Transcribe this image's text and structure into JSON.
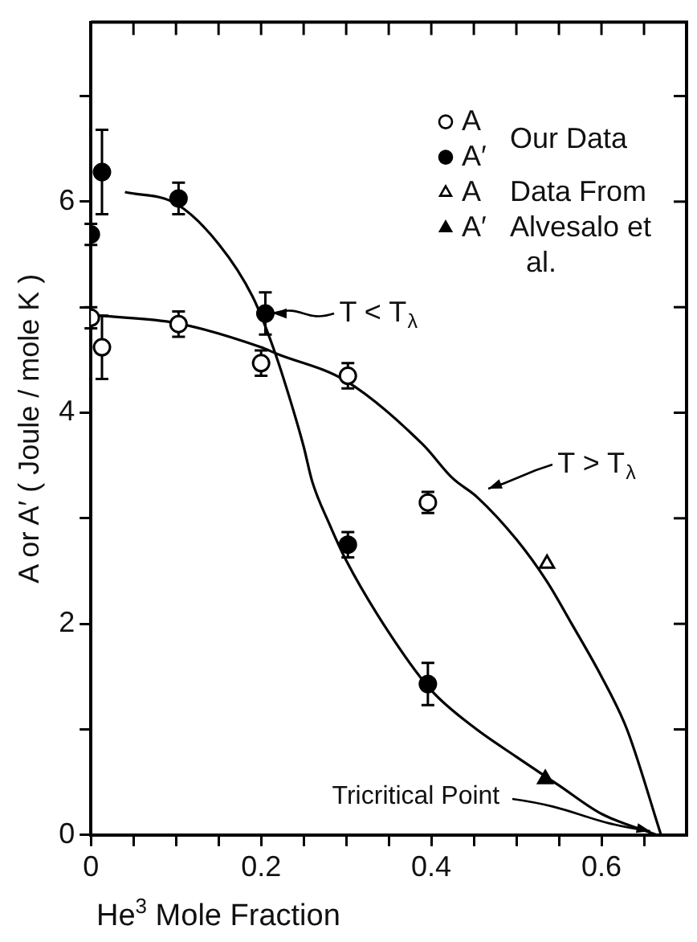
{
  "chart_data": {
    "type": "scatter",
    "xlabel": "He$^{3}$ Mole Fraction",
    "ylabel": "A or A′ ( Joule / mole K )",
    "xlim": [
      0,
      0.7
    ],
    "xticks": [
      0,
      {
        "value": 0.05,
        "label": null
      },
      {
        "value": 0.1,
        "label": null
      },
      {
        "value": 0.15,
        "label": null
      },
      {
        "value": 0.2,
        "label": "0.2"
      },
      {
        "value": 0.25,
        "label": null
      },
      {
        "value": 0.3,
        "label": null
      },
      {
        "value": 0.35,
        "label": null
      },
      {
        "value": 0.4,
        "label": "0.4"
      },
      {
        "value": 0.45,
        "label": null
      },
      {
        "value": 0.5,
        "label": null
      },
      {
        "value": 0.55,
        "label": null
      },
      {
        "value": 0.6,
        "label": "0.6"
      },
      {
        "value": 0.65,
        "label": null
      }
    ],
    "ylim": [
      0,
      7.7
    ],
    "yticks": [
      0,
      {
        "value": 1,
        "label": null
      },
      2,
      {
        "value": 3,
        "label": null
      },
      4,
      {
        "value": 5,
        "label": null
      },
      6,
      {
        "value": 7,
        "label": null
      }
    ],
    "grid": false,
    "legend": "top right",
    "series": [
      {
        "name": "A",
        "type": "scatter",
        "marker": "circle",
        "color": "#ffffff",
        "x": [
          0.0,
          0.013,
          0.103,
          0.2,
          0.302,
          0.396
        ],
        "values": [
          4.9,
          4.62,
          4.84,
          4.47,
          4.35,
          3.15
        ],
        "errors": [
          0.1,
          0.3,
          0.12,
          0.12,
          0.12,
          0.1
        ]
      },
      {
        "name": "A′",
        "type": "scatter",
        "marker": "circle",
        "color": "#000000",
        "x": [
          0.0,
          0.013,
          0.103,
          0.205,
          0.302,
          0.396
        ],
        "values": [
          5.69,
          6.28,
          6.03,
          4.94,
          2.75,
          1.43
        ],
        "errors": [
          0.1,
          0.4,
          0.15,
          0.2,
          0.12,
          0.2
        ]
      },
      {
        "name": "A",
        "type": "scatter",
        "marker": "triangle",
        "color": "#ffffff",
        "x": [
          0.536
        ],
        "values": [
          2.57
        ]
      },
      {
        "name": "A′",
        "type": "scatter",
        "marker": "triangle",
        "color": "#000000",
        "x": [
          0.534
        ],
        "values": [
          0.53
        ]
      },
      {
        "type": "line",
        "marker": "none",
        "color": "#000000",
        "x": [
          0.04,
          0.1,
          0.15,
          0.19,
          0.215,
          0.235,
          0.25,
          0.26,
          0.28,
          0.3,
          0.35,
          0.4,
          0.45,
          0.5,
          0.55,
          0.6,
          0.665
        ],
        "values": [
          6.09,
          5.98,
          5.6,
          5.1,
          4.6,
          4.1,
          3.68,
          3.35,
          2.95,
          2.6,
          1.92,
          1.37,
          1.02,
          0.74,
          0.47,
          0.2,
          0
        ]
      },
      {
        "type": "line",
        "marker": "none",
        "color": "#000000",
        "x": [
          0.01,
          0.1,
          0.2,
          0.218,
          0.3,
          0.39,
          0.425,
          0.454,
          0.5,
          0.536,
          0.565,
          0.6,
          0.63,
          0.67
        ],
        "values": [
          4.92,
          4.85,
          4.62,
          4.56,
          4.3,
          3.7,
          3.38,
          3.2,
          2.8,
          2.4,
          2.0,
          1.5,
          1.0,
          0
        ]
      }
    ],
    "annotations": [
      "Our Data",
      "Data From Alvesalo et al.",
      {
        "text": "T < T$_{λ}$",
        "x": 0.205,
        "y": 4.94
      },
      {
        "text": "T > T$_{λ}$",
        "x": 0.454,
        "y": 3.2
      },
      {
        "text": "Tricritical Point",
        "x": 0.665,
        "y": 0
      }
    ]
  }
}
